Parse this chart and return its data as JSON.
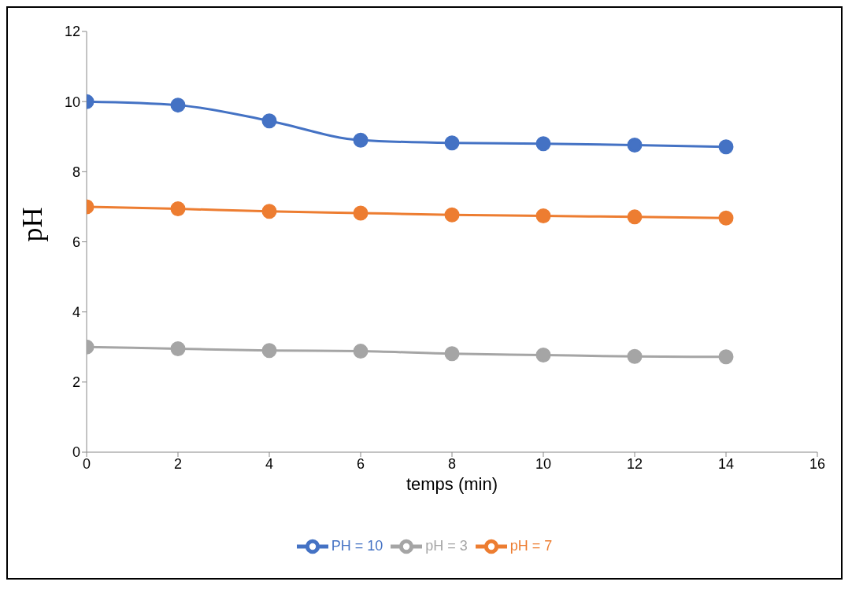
{
  "chart_data": {
    "type": "line",
    "xlabel": "temps (min)",
    "ylabel": "pH",
    "x": [
      0,
      2,
      4,
      6,
      8,
      10,
      12,
      14
    ],
    "series": [
      {
        "name": "PH = 10",
        "color": "#4472c4",
        "values": [
          10,
          9.9,
          9.45,
          8.9,
          8.82,
          8.8,
          8.76,
          8.71
        ]
      },
      {
        "name": "pH = 7",
        "color": "#ed7d31",
        "values": [
          7,
          6.94,
          6.87,
          6.82,
          6.77,
          6.74,
          6.71,
          6.68
        ]
      },
      {
        "name": "pH = 3",
        "color": "#a5a5a5",
        "values": [
          3,
          2.95,
          2.9,
          2.88,
          2.81,
          2.77,
          2.73,
          2.72
        ]
      }
    ],
    "xlim": [
      0,
      16
    ],
    "xticks": [
      0,
      2,
      4,
      6,
      8,
      10,
      12,
      14,
      16
    ],
    "ylim": [
      0,
      12
    ],
    "yticks": [
      0,
      2,
      4,
      6,
      8,
      10,
      12
    ],
    "grid": false,
    "legend": "bottom",
    "marker": "circle",
    "line_style": "solid"
  }
}
